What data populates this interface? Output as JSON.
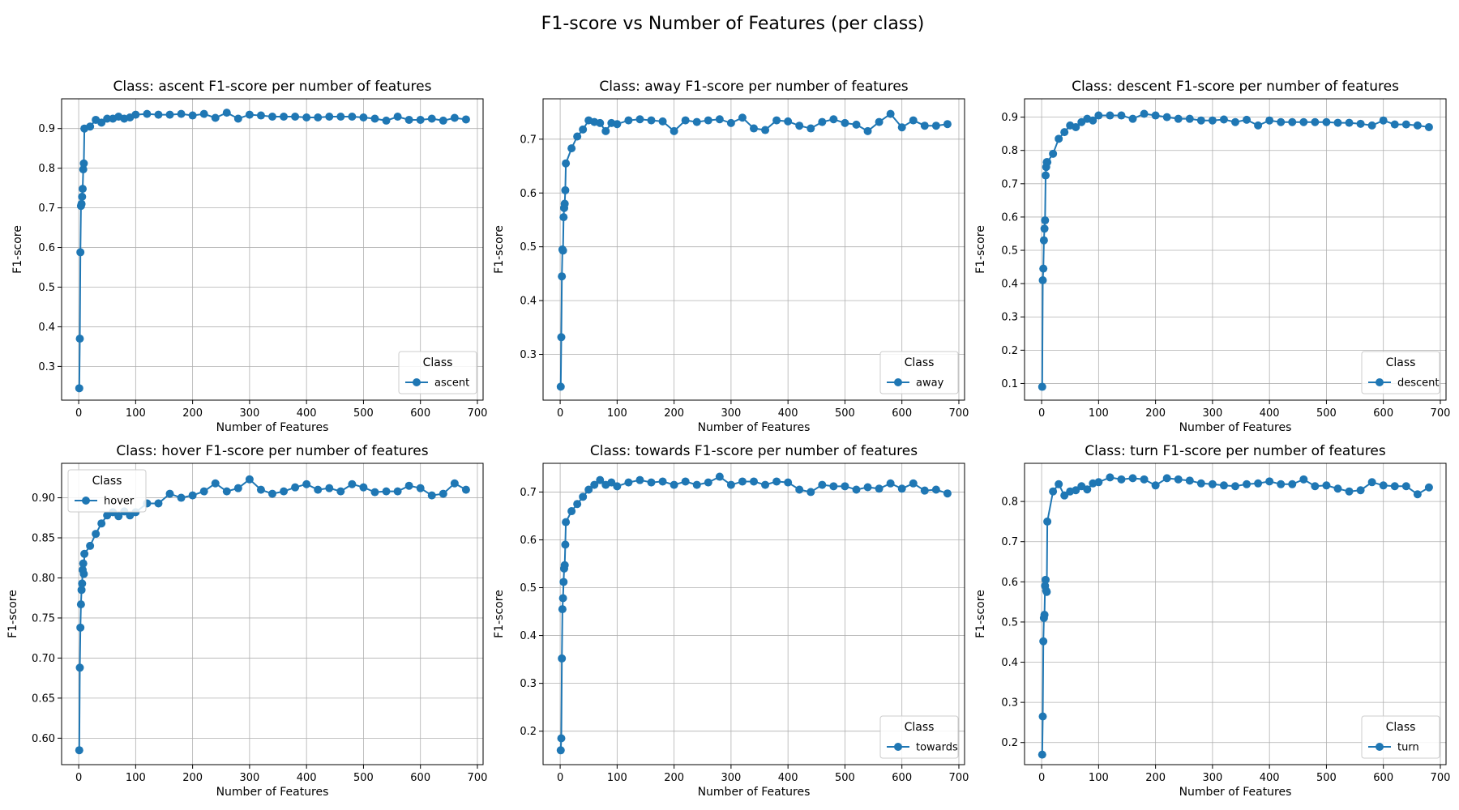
{
  "figure": {
    "title": "F1-score vs Number of Features (per class)"
  },
  "chart_data": [
    {
      "type": "line",
      "title": "Class: ascent F1-score per number of features",
      "xlabel": "Number of Features",
      "ylabel": "F1-score",
      "xlim": [
        -30,
        710
      ],
      "ylim": [
        0.215,
        0.975
      ],
      "xticks": [
        0,
        100,
        200,
        300,
        400,
        500,
        600,
        700
      ],
      "yticks": [
        0.3,
        0.4,
        0.5,
        0.6,
        0.7,
        0.8,
        0.9
      ],
      "grid": true,
      "legend": {
        "title": "Class",
        "position": "lower-right"
      },
      "series": [
        {
          "name": "ascent",
          "color": "#1f77b4",
          "x": [
            1,
            2,
            3,
            4,
            5,
            6,
            7,
            8,
            9,
            10,
            20,
            30,
            40,
            50,
            60,
            70,
            80,
            90,
            100,
            120,
            140,
            160,
            180,
            200,
            220,
            240,
            260,
            280,
            300,
            320,
            340,
            360,
            380,
            400,
            420,
            440,
            460,
            480,
            500,
            520,
            540,
            560,
            580,
            600,
            620,
            640,
            660,
            680
          ],
          "y": [
            0.245,
            0.37,
            0.588,
            0.705,
            0.71,
            0.728,
            0.748,
            0.797,
            0.812,
            0.9,
            0.905,
            0.922,
            0.915,
            0.925,
            0.925,
            0.93,
            0.925,
            0.928,
            0.935,
            0.937,
            0.935,
            0.935,
            0.937,
            0.933,
            0.937,
            0.927,
            0.94,
            0.925,
            0.935,
            0.933,
            0.93,
            0.93,
            0.93,
            0.928,
            0.928,
            0.93,
            0.93,
            0.93,
            0.928,
            0.925,
            0.92,
            0.93,
            0.922,
            0.922,
            0.925,
            0.92,
            0.927,
            0.923
          ]
        }
      ]
    },
    {
      "type": "line",
      "title": "Class: away F1-score per number of features",
      "xlabel": "Number of Features",
      "ylabel": "F1-score",
      "xlim": [
        -30,
        710
      ],
      "ylim": [
        0.215,
        0.775
      ],
      "xticks": [
        0,
        100,
        200,
        300,
        400,
        500,
        600,
        700
      ],
      "yticks": [
        0.3,
        0.4,
        0.5,
        0.6,
        0.7
      ],
      "grid": true,
      "legend": {
        "title": "Class",
        "position": "lower-right"
      },
      "series": [
        {
          "name": "away",
          "color": "#1f77b4",
          "x": [
            1,
            2,
            3,
            4,
            5,
            6,
            7,
            8,
            9,
            10,
            20,
            30,
            40,
            50,
            60,
            70,
            80,
            90,
            100,
            120,
            140,
            160,
            180,
            200,
            220,
            240,
            260,
            280,
            300,
            320,
            340,
            360,
            380,
            400,
            420,
            440,
            460,
            480,
            500,
            520,
            540,
            560,
            580,
            600,
            620,
            640,
            660,
            680
          ],
          "y": [
            0.24,
            0.332,
            0.445,
            0.495,
            0.493,
            0.555,
            0.572,
            0.58,
            0.605,
            0.655,
            0.683,
            0.705,
            0.718,
            0.735,
            0.732,
            0.73,
            0.715,
            0.73,
            0.728,
            0.735,
            0.737,
            0.735,
            0.733,
            0.715,
            0.735,
            0.732,
            0.735,
            0.737,
            0.73,
            0.74,
            0.72,
            0.717,
            0.735,
            0.733,
            0.725,
            0.72,
            0.732,
            0.737,
            0.73,
            0.727,
            0.715,
            0.732,
            0.747,
            0.722,
            0.735,
            0.725,
            0.725,
            0.728
          ]
        }
      ]
    },
    {
      "type": "line",
      "title": "Class: descent F1-score per number of features",
      "xlabel": "Number of Features",
      "ylabel": "F1-score",
      "xlim": [
        -30,
        710
      ],
      "ylim": [
        0.05,
        0.955
      ],
      "xticks": [
        0,
        100,
        200,
        300,
        400,
        500,
        600,
        700
      ],
      "yticks": [
        0.1,
        0.2,
        0.3,
        0.4,
        0.5,
        0.6,
        0.7,
        0.8,
        0.9
      ],
      "grid": true,
      "legend": {
        "title": "Class",
        "position": "lower-right"
      },
      "series": [
        {
          "name": "descent",
          "color": "#1f77b4",
          "x": [
            1,
            2,
            3,
            4,
            5,
            6,
            7,
            8,
            9,
            10,
            20,
            30,
            40,
            50,
            60,
            70,
            80,
            90,
            100,
            120,
            140,
            160,
            180,
            200,
            220,
            240,
            260,
            280,
            300,
            320,
            340,
            360,
            380,
            400,
            420,
            440,
            460,
            480,
            500,
            520,
            540,
            560,
            580,
            600,
            620,
            640,
            660,
            680
          ],
          "y": [
            0.09,
            0.41,
            0.445,
            0.53,
            0.565,
            0.59,
            0.725,
            0.75,
            0.765,
            0.765,
            0.79,
            0.835,
            0.855,
            0.875,
            0.87,
            0.885,
            0.895,
            0.89,
            0.905,
            0.905,
            0.905,
            0.895,
            0.91,
            0.905,
            0.9,
            0.895,
            0.895,
            0.89,
            0.89,
            0.893,
            0.885,
            0.892,
            0.875,
            0.89,
            0.885,
            0.885,
            0.885,
            0.885,
            0.885,
            0.883,
            0.883,
            0.88,
            0.875,
            0.89,
            0.878,
            0.878,
            0.875,
            0.87
          ]
        }
      ]
    },
    {
      "type": "line",
      "title": "Class: hover F1-score per number of features",
      "xlabel": "Number of Features",
      "ylabel": "F1-score",
      "xlim": [
        -30,
        710
      ],
      "ylim": [
        0.567,
        0.943
      ],
      "xticks": [
        0,
        100,
        200,
        300,
        400,
        500,
        600,
        700
      ],
      "yticks": [
        0.6,
        0.65,
        0.7,
        0.75,
        0.8,
        0.85,
        0.9
      ],
      "yticklabels": [
        "0.60",
        "0.65",
        "0.70",
        "0.75",
        "0.80",
        "0.85",
        "0.90"
      ],
      "grid": true,
      "legend": {
        "title": "Class",
        "position": "upper-left"
      },
      "series": [
        {
          "name": "hover",
          "color": "#1f77b4",
          "x": [
            1,
            2,
            3,
            4,
            5,
            6,
            7,
            8,
            9,
            10,
            20,
            30,
            40,
            50,
            60,
            70,
            80,
            90,
            100,
            120,
            140,
            160,
            180,
            200,
            220,
            240,
            260,
            280,
            300,
            320,
            340,
            360,
            380,
            400,
            420,
            440,
            460,
            480,
            500,
            520,
            540,
            560,
            580,
            600,
            620,
            640,
            660,
            680
          ],
          "y": [
            0.585,
            0.688,
            0.738,
            0.767,
            0.785,
            0.793,
            0.81,
            0.818,
            0.805,
            0.83,
            0.84,
            0.855,
            0.868,
            0.878,
            0.882,
            0.877,
            0.883,
            0.878,
            0.882,
            0.893,
            0.893,
            0.905,
            0.9,
            0.903,
            0.908,
            0.918,
            0.908,
            0.912,
            0.923,
            0.91,
            0.905,
            0.908,
            0.913,
            0.917,
            0.91,
            0.912,
            0.908,
            0.917,
            0.913,
            0.907,
            0.908,
            0.908,
            0.915,
            0.912,
            0.903,
            0.905,
            0.918,
            0.91
          ]
        }
      ]
    },
    {
      "type": "line",
      "title": "Class: towards F1-score per number of features",
      "xlabel": "Number of Features",
      "ylabel": "F1-score",
      "xlim": [
        -30,
        710
      ],
      "ylim": [
        0.13,
        0.76
      ],
      "xticks": [
        0,
        100,
        200,
        300,
        400,
        500,
        600,
        700
      ],
      "yticks": [
        0.2,
        0.3,
        0.4,
        0.5,
        0.6,
        0.7
      ],
      "grid": true,
      "legend": {
        "title": "Class",
        "position": "lower-right"
      },
      "series": [
        {
          "name": "towards",
          "color": "#1f77b4",
          "x": [
            1,
            2,
            3,
            4,
            5,
            6,
            7,
            8,
            9,
            10,
            20,
            30,
            40,
            50,
            60,
            70,
            80,
            90,
            100,
            120,
            140,
            160,
            180,
            200,
            220,
            240,
            260,
            280,
            300,
            320,
            340,
            360,
            380,
            400,
            420,
            440,
            460,
            480,
            500,
            520,
            540,
            560,
            580,
            600,
            620,
            640,
            660,
            680
          ],
          "y": [
            0.16,
            0.185,
            0.352,
            0.455,
            0.478,
            0.512,
            0.54,
            0.547,
            0.59,
            0.637,
            0.66,
            0.675,
            0.69,
            0.705,
            0.715,
            0.725,
            0.715,
            0.72,
            0.712,
            0.72,
            0.725,
            0.72,
            0.722,
            0.715,
            0.722,
            0.715,
            0.72,
            0.732,
            0.715,
            0.722,
            0.722,
            0.715,
            0.722,
            0.72,
            0.705,
            0.7,
            0.715,
            0.712,
            0.712,
            0.705,
            0.71,
            0.707,
            0.718,
            0.707,
            0.718,
            0.703,
            0.705,
            0.697
          ]
        }
      ]
    },
    {
      "type": "line",
      "title": "Class: turn F1-score per number of features",
      "xlabel": "Number of Features",
      "ylabel": "F1-score",
      "xlim": [
        -30,
        710
      ],
      "ylim": [
        0.145,
        0.895
      ],
      "xticks": [
        0,
        100,
        200,
        300,
        400,
        500,
        600,
        700
      ],
      "yticks": [
        0.2,
        0.3,
        0.4,
        0.5,
        0.6,
        0.7,
        0.8
      ],
      "grid": true,
      "legend": {
        "title": "Class",
        "position": "lower-right"
      },
      "series": [
        {
          "name": "turn",
          "color": "#1f77b4",
          "x": [
            1,
            2,
            3,
            4,
            5,
            6,
            7,
            8,
            9,
            10,
            20,
            30,
            40,
            50,
            60,
            70,
            80,
            90,
            100,
            120,
            140,
            160,
            180,
            200,
            220,
            240,
            260,
            280,
            300,
            320,
            340,
            360,
            380,
            400,
            420,
            440,
            460,
            480,
            500,
            520,
            540,
            560,
            580,
            600,
            620,
            640,
            660,
            680
          ],
          "y": [
            0.17,
            0.265,
            0.452,
            0.51,
            0.518,
            0.59,
            0.605,
            0.578,
            0.575,
            0.75,
            0.825,
            0.843,
            0.815,
            0.825,
            0.828,
            0.838,
            0.83,
            0.845,
            0.848,
            0.86,
            0.855,
            0.858,
            0.855,
            0.84,
            0.858,
            0.855,
            0.852,
            0.845,
            0.843,
            0.84,
            0.838,
            0.843,
            0.845,
            0.85,
            0.843,
            0.843,
            0.855,
            0.838,
            0.84,
            0.832,
            0.825,
            0.828,
            0.848,
            0.84,
            0.838,
            0.838,
            0.818,
            0.835
          ]
        }
      ]
    }
  ]
}
